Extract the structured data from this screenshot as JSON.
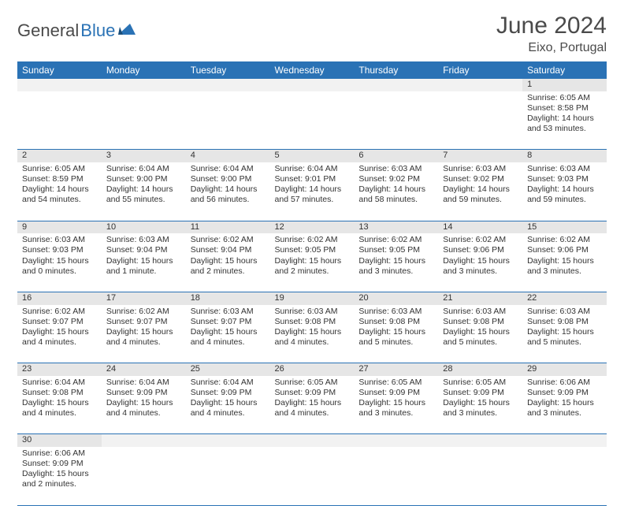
{
  "logo": {
    "general": "General",
    "blue": "Blue"
  },
  "title": "June 2024",
  "location": "Eixo, Portugal",
  "colors": {
    "header_bg": "#2a72b5",
    "header_text": "#ffffff",
    "daynum_bg": "#e6e6e6",
    "empty_bg": "#f2f2f2",
    "border": "#2a72b5",
    "text": "#333333",
    "logo_gray": "#4a4a4a",
    "logo_blue": "#2a72b5"
  },
  "typography": {
    "title_fontsize": 30,
    "location_fontsize": 16,
    "weekday_fontsize": 12,
    "cell_fontsize": 10.5,
    "daynum_fontsize": 11
  },
  "weekdays": [
    "Sunday",
    "Monday",
    "Tuesday",
    "Wednesday",
    "Thursday",
    "Friday",
    "Saturday"
  ],
  "weeks": [
    [
      null,
      null,
      null,
      null,
      null,
      null,
      {
        "n": "1",
        "sr": "Sunrise: 6:05 AM",
        "ss": "Sunset: 8:58 PM",
        "d1": "Daylight: 14 hours",
        "d2": "and 53 minutes."
      }
    ],
    [
      {
        "n": "2",
        "sr": "Sunrise: 6:05 AM",
        "ss": "Sunset: 8:59 PM",
        "d1": "Daylight: 14 hours",
        "d2": "and 54 minutes."
      },
      {
        "n": "3",
        "sr": "Sunrise: 6:04 AM",
        "ss": "Sunset: 9:00 PM",
        "d1": "Daylight: 14 hours",
        "d2": "and 55 minutes."
      },
      {
        "n": "4",
        "sr": "Sunrise: 6:04 AM",
        "ss": "Sunset: 9:00 PM",
        "d1": "Daylight: 14 hours",
        "d2": "and 56 minutes."
      },
      {
        "n": "5",
        "sr": "Sunrise: 6:04 AM",
        "ss": "Sunset: 9:01 PM",
        "d1": "Daylight: 14 hours",
        "d2": "and 57 minutes."
      },
      {
        "n": "6",
        "sr": "Sunrise: 6:03 AM",
        "ss": "Sunset: 9:02 PM",
        "d1": "Daylight: 14 hours",
        "d2": "and 58 minutes."
      },
      {
        "n": "7",
        "sr": "Sunrise: 6:03 AM",
        "ss": "Sunset: 9:02 PM",
        "d1": "Daylight: 14 hours",
        "d2": "and 59 minutes."
      },
      {
        "n": "8",
        "sr": "Sunrise: 6:03 AM",
        "ss": "Sunset: 9:03 PM",
        "d1": "Daylight: 14 hours",
        "d2": "and 59 minutes."
      }
    ],
    [
      {
        "n": "9",
        "sr": "Sunrise: 6:03 AM",
        "ss": "Sunset: 9:03 PM",
        "d1": "Daylight: 15 hours",
        "d2": "and 0 minutes."
      },
      {
        "n": "10",
        "sr": "Sunrise: 6:03 AM",
        "ss": "Sunset: 9:04 PM",
        "d1": "Daylight: 15 hours",
        "d2": "and 1 minute."
      },
      {
        "n": "11",
        "sr": "Sunrise: 6:02 AM",
        "ss": "Sunset: 9:04 PM",
        "d1": "Daylight: 15 hours",
        "d2": "and 2 minutes."
      },
      {
        "n": "12",
        "sr": "Sunrise: 6:02 AM",
        "ss": "Sunset: 9:05 PM",
        "d1": "Daylight: 15 hours",
        "d2": "and 2 minutes."
      },
      {
        "n": "13",
        "sr": "Sunrise: 6:02 AM",
        "ss": "Sunset: 9:05 PM",
        "d1": "Daylight: 15 hours",
        "d2": "and 3 minutes."
      },
      {
        "n": "14",
        "sr": "Sunrise: 6:02 AM",
        "ss": "Sunset: 9:06 PM",
        "d1": "Daylight: 15 hours",
        "d2": "and 3 minutes."
      },
      {
        "n": "15",
        "sr": "Sunrise: 6:02 AM",
        "ss": "Sunset: 9:06 PM",
        "d1": "Daylight: 15 hours",
        "d2": "and 3 minutes."
      }
    ],
    [
      {
        "n": "16",
        "sr": "Sunrise: 6:02 AM",
        "ss": "Sunset: 9:07 PM",
        "d1": "Daylight: 15 hours",
        "d2": "and 4 minutes."
      },
      {
        "n": "17",
        "sr": "Sunrise: 6:02 AM",
        "ss": "Sunset: 9:07 PM",
        "d1": "Daylight: 15 hours",
        "d2": "and 4 minutes."
      },
      {
        "n": "18",
        "sr": "Sunrise: 6:03 AM",
        "ss": "Sunset: 9:07 PM",
        "d1": "Daylight: 15 hours",
        "d2": "and 4 minutes."
      },
      {
        "n": "19",
        "sr": "Sunrise: 6:03 AM",
        "ss": "Sunset: 9:08 PM",
        "d1": "Daylight: 15 hours",
        "d2": "and 4 minutes."
      },
      {
        "n": "20",
        "sr": "Sunrise: 6:03 AM",
        "ss": "Sunset: 9:08 PM",
        "d1": "Daylight: 15 hours",
        "d2": "and 5 minutes."
      },
      {
        "n": "21",
        "sr": "Sunrise: 6:03 AM",
        "ss": "Sunset: 9:08 PM",
        "d1": "Daylight: 15 hours",
        "d2": "and 5 minutes."
      },
      {
        "n": "22",
        "sr": "Sunrise: 6:03 AM",
        "ss": "Sunset: 9:08 PM",
        "d1": "Daylight: 15 hours",
        "d2": "and 5 minutes."
      }
    ],
    [
      {
        "n": "23",
        "sr": "Sunrise: 6:04 AM",
        "ss": "Sunset: 9:08 PM",
        "d1": "Daylight: 15 hours",
        "d2": "and 4 minutes."
      },
      {
        "n": "24",
        "sr": "Sunrise: 6:04 AM",
        "ss": "Sunset: 9:09 PM",
        "d1": "Daylight: 15 hours",
        "d2": "and 4 minutes."
      },
      {
        "n": "25",
        "sr": "Sunrise: 6:04 AM",
        "ss": "Sunset: 9:09 PM",
        "d1": "Daylight: 15 hours",
        "d2": "and 4 minutes."
      },
      {
        "n": "26",
        "sr": "Sunrise: 6:05 AM",
        "ss": "Sunset: 9:09 PM",
        "d1": "Daylight: 15 hours",
        "d2": "and 4 minutes."
      },
      {
        "n": "27",
        "sr": "Sunrise: 6:05 AM",
        "ss": "Sunset: 9:09 PM",
        "d1": "Daylight: 15 hours",
        "d2": "and 3 minutes."
      },
      {
        "n": "28",
        "sr": "Sunrise: 6:05 AM",
        "ss": "Sunset: 9:09 PM",
        "d1": "Daylight: 15 hours",
        "d2": "and 3 minutes."
      },
      {
        "n": "29",
        "sr": "Sunrise: 6:06 AM",
        "ss": "Sunset: 9:09 PM",
        "d1": "Daylight: 15 hours",
        "d2": "and 3 minutes."
      }
    ],
    [
      {
        "n": "30",
        "sr": "Sunrise: 6:06 AM",
        "ss": "Sunset: 9:09 PM",
        "d1": "Daylight: 15 hours",
        "d2": "and 2 minutes."
      },
      null,
      null,
      null,
      null,
      null,
      null
    ]
  ]
}
